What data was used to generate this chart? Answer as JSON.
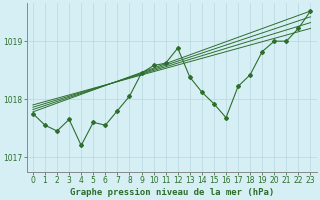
{
  "title": "Graphe pression niveau de la mer (hPa)",
  "background_color": "#d6eff5",
  "grid_color": "#b8d8e0",
  "line_color": "#2d6e2d",
  "text_color": "#2d6e2d",
  "xlim": [
    -0.5,
    23.5
  ],
  "ylim": [
    1016.75,
    1019.65
  ],
  "yticks": [
    1017,
    1018,
    1019
  ],
  "xticks": [
    0,
    1,
    2,
    3,
    4,
    5,
    6,
    7,
    8,
    9,
    10,
    11,
    12,
    13,
    14,
    15,
    16,
    17,
    18,
    19,
    20,
    21,
    22,
    23
  ],
  "main_line_x": [
    0,
    1,
    2,
    3,
    4,
    5,
    6,
    7,
    8,
    9,
    10,
    11,
    12,
    13,
    14,
    15,
    16,
    17,
    18,
    19,
    20,
    21,
    22,
    23
  ],
  "main_line_y": [
    1017.75,
    1017.55,
    1017.45,
    1017.65,
    1017.2,
    1017.6,
    1017.55,
    1017.8,
    1018.05,
    1018.45,
    1018.58,
    1018.62,
    1018.88,
    1018.38,
    1018.12,
    1017.92,
    1017.68,
    1018.22,
    1018.42,
    1018.82,
    1019.0,
    1019.0,
    1019.22,
    1019.52
  ],
  "reg_line1_x": [
    0,
    23
  ],
  "reg_line1_y": [
    1017.78,
    1019.52
  ],
  "reg_line2_x": [
    0,
    23
  ],
  "reg_line2_y": [
    1017.82,
    1019.42
  ],
  "reg_line3_x": [
    0,
    23
  ],
  "reg_line3_y": [
    1017.86,
    1019.32
  ],
  "reg_line4_x": [
    0,
    23
  ],
  "reg_line4_y": [
    1017.9,
    1019.22
  ],
  "tick_fontsize": 5.5,
  "xlabel_fontsize": 6.5
}
